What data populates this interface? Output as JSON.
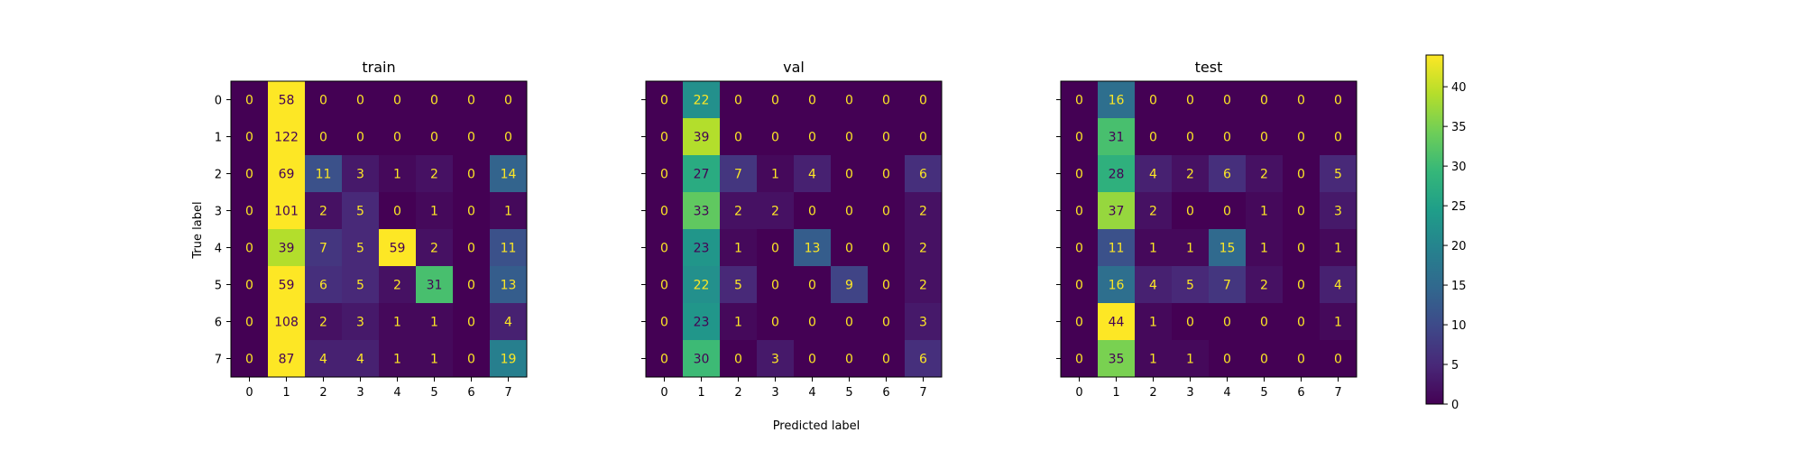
{
  "colors": {
    "low_text": "#fde725",
    "high_text": "#440154"
  },
  "chart_data": {
    "type": "heatmap",
    "colormap": "viridis",
    "xlabel": "Predicted label",
    "ylabel": "True label",
    "colorbar": {
      "vmin": 0,
      "vmax": 44,
      "ticks": [
        0,
        5,
        10,
        15,
        20,
        25,
        30,
        35,
        40
      ]
    },
    "panels": [
      {
        "title": "train",
        "x_ticks": [
          "0",
          "1",
          "2",
          "3",
          "4",
          "5",
          "6",
          "7"
        ],
        "y_ticks": [
          "0",
          "1",
          "2",
          "3",
          "4",
          "5",
          "6",
          "7"
        ],
        "matrix": [
          [
            0,
            58,
            0,
            0,
            0,
            0,
            0,
            0
          ],
          [
            0,
            122,
            0,
            0,
            0,
            0,
            0,
            0
          ],
          [
            0,
            69,
            11,
            3,
            1,
            2,
            0,
            14
          ],
          [
            0,
            101,
            2,
            5,
            0,
            1,
            0,
            1
          ],
          [
            0,
            39,
            7,
            5,
            59,
            2,
            0,
            11
          ],
          [
            0,
            59,
            6,
            5,
            2,
            31,
            0,
            13
          ],
          [
            0,
            108,
            2,
            3,
            1,
            1,
            0,
            4
          ],
          [
            0,
            87,
            4,
            4,
            1,
            1,
            0,
            19
          ]
        ]
      },
      {
        "title": "val",
        "x_ticks": [
          "0",
          "1",
          "2",
          "3",
          "4",
          "5",
          "6",
          "7"
        ],
        "y_ticks": [],
        "matrix": [
          [
            0,
            22,
            0,
            0,
            0,
            0,
            0,
            0
          ],
          [
            0,
            39,
            0,
            0,
            0,
            0,
            0,
            0
          ],
          [
            0,
            27,
            7,
            1,
            4,
            0,
            0,
            6
          ],
          [
            0,
            33,
            2,
            2,
            0,
            0,
            0,
            2
          ],
          [
            0,
            23,
            1,
            0,
            13,
            0,
            0,
            2
          ],
          [
            0,
            22,
            5,
            0,
            0,
            9,
            0,
            2
          ],
          [
            0,
            23,
            1,
            0,
            0,
            0,
            0,
            3
          ],
          [
            0,
            30,
            0,
            3,
            0,
            0,
            0,
            6
          ]
        ]
      },
      {
        "title": "test",
        "x_ticks": [
          "0",
          "1",
          "2",
          "3",
          "4",
          "5",
          "6",
          "7"
        ],
        "y_ticks": [],
        "matrix": [
          [
            0,
            16,
            0,
            0,
            0,
            0,
            0,
            0
          ],
          [
            0,
            31,
            0,
            0,
            0,
            0,
            0,
            0
          ],
          [
            0,
            28,
            4,
            2,
            6,
            2,
            0,
            5
          ],
          [
            0,
            37,
            2,
            0,
            0,
            1,
            0,
            3
          ],
          [
            0,
            11,
            1,
            1,
            15,
            1,
            0,
            1
          ],
          [
            0,
            16,
            4,
            5,
            7,
            2,
            0,
            4
          ],
          [
            0,
            44,
            1,
            0,
            0,
            0,
            0,
            1
          ],
          [
            0,
            35,
            1,
            1,
            0,
            0,
            0,
            0
          ]
        ]
      }
    ]
  }
}
